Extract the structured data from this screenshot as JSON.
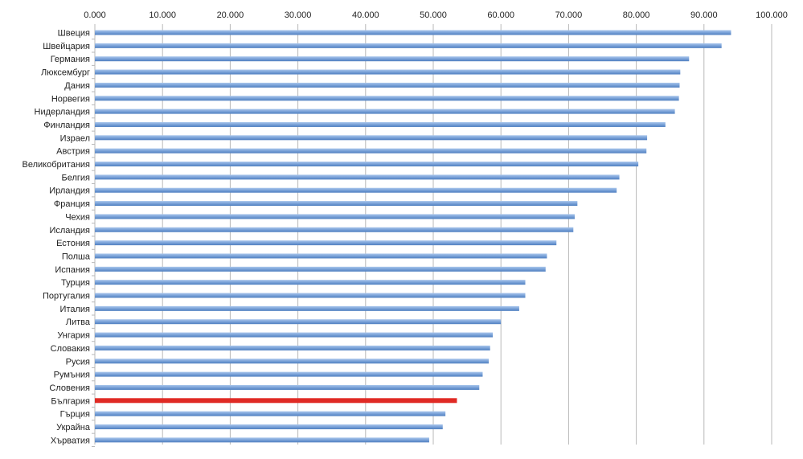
{
  "chart_data": {
    "type": "bar",
    "orientation": "horizontal",
    "categories": [
      "Швеция",
      "Швейцария",
      "Германия",
      "Люксембург",
      "Дания",
      "Норвегия",
      "Нидерландия",
      "Финландия",
      "Израел",
      "Австрия",
      "Великобритания",
      "Белгия",
      "Ирландия",
      "Франция",
      "Чехия",
      "Исландия",
      "Естония",
      "Полша",
      "Испания",
      "Турция",
      "Португалия",
      "Италия",
      "Литва",
      "Унгария",
      "Словакия",
      "Русия",
      "Румъния",
      "Словения",
      "България",
      "Гърция",
      "Украйна",
      "Хърватия"
    ],
    "values": [
      94.0,
      92.6,
      87.8,
      86.5,
      86.4,
      86.3,
      85.7,
      84.3,
      81.6,
      81.5,
      80.3,
      77.5,
      77.1,
      71.3,
      70.9,
      70.7,
      68.2,
      66.8,
      66.6,
      63.6,
      63.6,
      62.7,
      60.0,
      58.8,
      58.4,
      58.2,
      57.3,
      56.8,
      53.5,
      51.8,
      51.4,
      49.4
    ],
    "highlight_category": "България",
    "xlim": [
      0,
      100
    ],
    "xticks": [
      "0.000",
      "10.000",
      "20.000",
      "30.000",
      "40.000",
      "50.000",
      "60.000",
      "70.000",
      "80.000",
      "90.000",
      "100.000"
    ],
    "title": "",
    "xlabel": "",
    "ylabel": "",
    "grid": "vertical",
    "axis_position": "top"
  },
  "colors": {
    "bar": "#7aa2d8",
    "bar_highlight": "#e02a24",
    "grid": "#b8b8b8"
  }
}
